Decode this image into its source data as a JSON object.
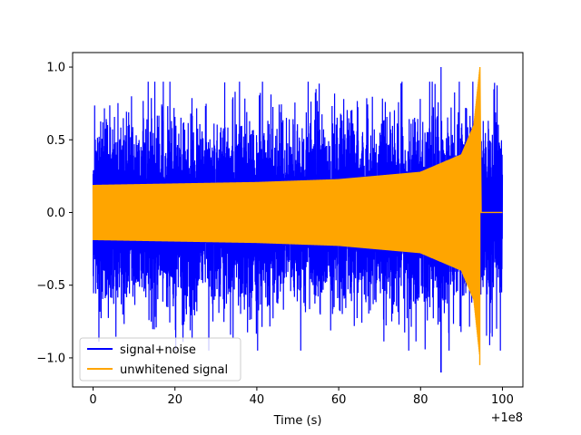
{
  "chart_data": {
    "type": "line",
    "title": "",
    "xlabel": "Time (s)",
    "ylabel": "",
    "x_offset_label": "+1e8",
    "xlim": [
      -5,
      105
    ],
    "ylim": [
      -1.2,
      1.1
    ],
    "x_ticks": [
      0,
      20,
      40,
      60,
      80,
      100
    ],
    "x_tick_labels": [
      "0",
      "20",
      "40",
      "60",
      "80",
      "100"
    ],
    "y_ticks": [
      -1.0,
      -0.5,
      0.0,
      0.5,
      1.0
    ],
    "y_tick_labels": [
      "−1.0",
      "−0.5",
      "0.0",
      "0.5",
      "1.0"
    ],
    "grid": false,
    "legend_position": "lower left",
    "series": [
      {
        "name": "signal+noise",
        "color": "#0000ff",
        "x_range": [
          0,
          100
        ],
        "typical_amplitude": 0.6,
        "peak_max": 1.0,
        "peak_min": -1.1,
        "peak_max_at": 85,
        "peak_min_at": 85
      },
      {
        "name": "unwhitened signal",
        "color": "#ffa500",
        "x_range": [
          0,
          100
        ],
        "envelope": [
          {
            "x": 0,
            "amp": 0.19
          },
          {
            "x": 20,
            "amp": 0.2
          },
          {
            "x": 40,
            "amp": 0.21
          },
          {
            "x": 60,
            "amp": 0.23
          },
          {
            "x": 80,
            "amp": 0.28
          },
          {
            "x": 90,
            "amp": 0.4
          },
          {
            "x": 93,
            "amp": 0.6
          },
          {
            "x": 94.5,
            "amp": 1.0
          }
        ],
        "merger_time": 94.5,
        "post_merger_value": 0.0,
        "peak_max": 1.0,
        "peak_min": -1.05
      }
    ]
  }
}
